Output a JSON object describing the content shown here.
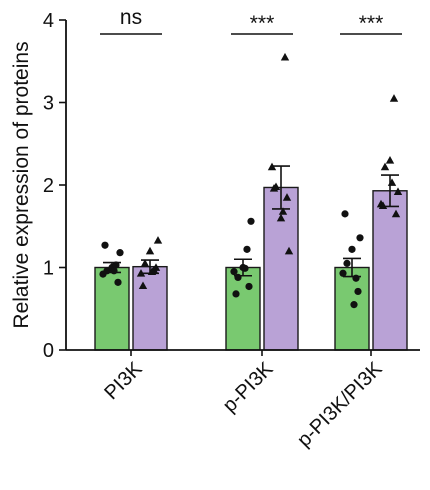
{
  "chart_data": {
    "type": "bar",
    "ylabel": "Relative expression of proteins",
    "ylim": [
      0,
      4
    ],
    "yticks": [
      "0",
      "1",
      "2",
      "3",
      "4"
    ],
    "categories": [
      "PI3K",
      "p-PI3K",
      "p-PI3K/PI3K"
    ],
    "series": [
      {
        "color": "#79c970",
        "marker": "circle",
        "values": [
          1.0,
          1.0,
          1.0
        ],
        "sem": [
          0.06,
          0.1,
          0.11
        ],
        "points": [
          [
            0.92,
            0.96,
            1.0,
            1.03,
            1.18,
            1.27,
            0.82,
            0.96
          ],
          [
            0.95,
            0.88,
            1.0,
            1.22,
            1.56,
            0.68,
            0.77,
            0.99
          ],
          [
            0.93,
            1.05,
            1.22,
            0.87,
            1.36,
            1.65,
            0.71,
            0.55
          ]
        ]
      },
      {
        "color": "#b9a2d6",
        "marker": "triangle",
        "values": [
          1.01,
          1.97,
          1.93
        ],
        "sem": [
          0.08,
          0.26,
          0.19
        ],
        "points": [
          [
            0.93,
            1.05,
            1.2,
            0.97,
            1.33,
            0.78,
            1.0,
            0.95
          ],
          [
            2.22,
            1.98,
            1.6,
            3.55,
            1.2,
            1.96,
            1.85,
            1.68
          ],
          [
            1.77,
            2.22,
            2.3,
            3.05,
            1.92,
            1.75,
            1.65,
            2.03
          ]
        ]
      }
    ],
    "significance": [
      "ns",
      "***",
      "***"
    ]
  },
  "colors": {
    "bar_outline": "#1a1a1a",
    "axis": "#111111"
  }
}
